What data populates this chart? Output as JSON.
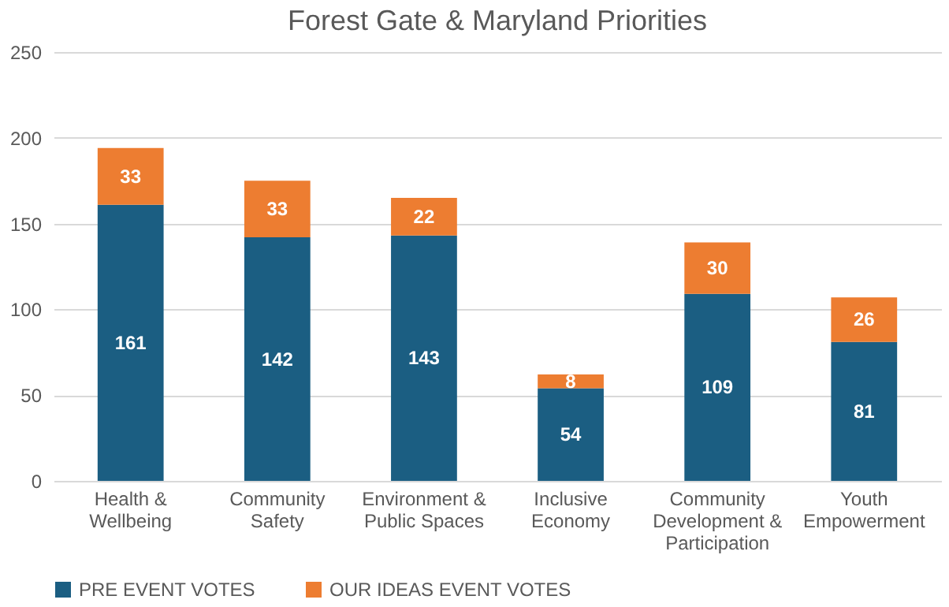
{
  "chart_data": {
    "type": "bar",
    "title": "Forest Gate & Maryland Priorities",
    "stacked": true,
    "categories": [
      "Health & Wellbeing",
      "Community Safety",
      "Environment & Public Spaces",
      "Inclusive Economy",
      "Community Development & Participation",
      "Youth Empowerment"
    ],
    "series": [
      {
        "name": "PRE EVENT VOTES",
        "color": "#1b5e82",
        "values": [
          161,
          142,
          143,
          54,
          109,
          81
        ]
      },
      {
        "name": "OUR IDEAS EVENT VOTES",
        "color": "#ed7d31",
        "values": [
          33,
          33,
          22,
          8,
          30,
          26
        ]
      }
    ],
    "ylim": [
      0,
      250
    ],
    "yticks": [
      0,
      50,
      100,
      150,
      200,
      250
    ],
    "grid": "y",
    "legend": "bottom",
    "data_labels": true
  }
}
